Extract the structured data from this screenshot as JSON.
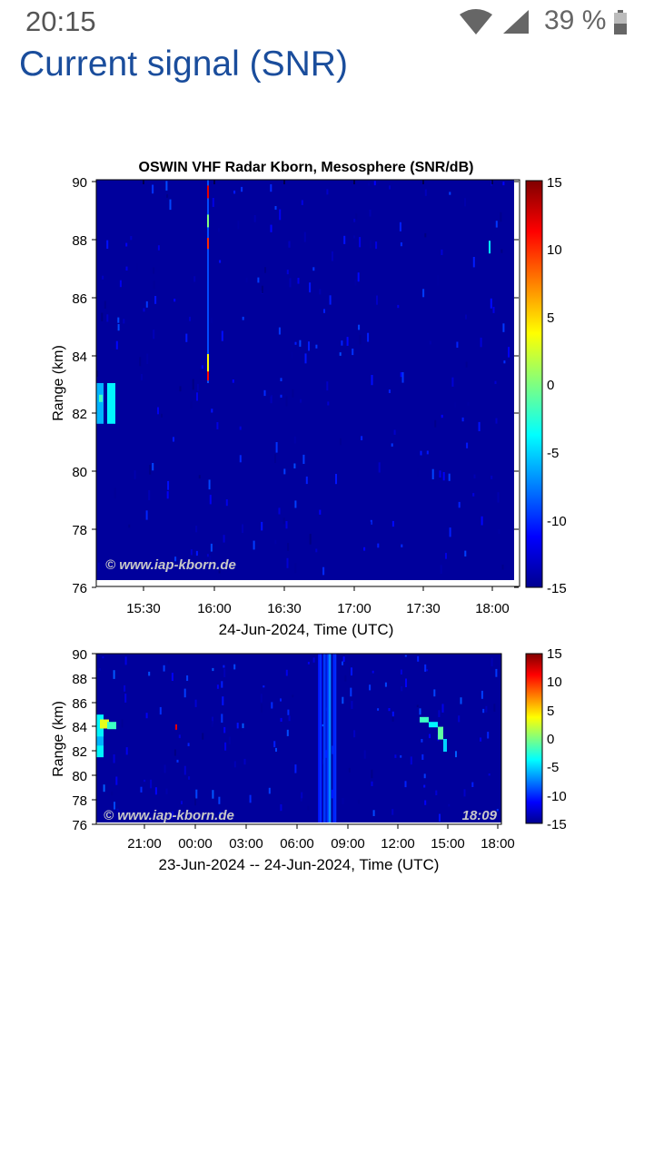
{
  "status_bar": {
    "time": "20:15",
    "battery_percent": "39 %",
    "wifi_icon": "wifi-icon",
    "signal_icon": "cellular-signal-icon",
    "battery_icon": "battery-icon"
  },
  "page": {
    "title": "Current signal (SNR)"
  },
  "colorbar_ticks": [
    "15",
    "10",
    "5",
    "0",
    "-5",
    "-10",
    "-15"
  ],
  "chart_data": [
    {
      "type": "heatmap",
      "title": "OSWIN VHF Radar Kborn, Mesosphere (SNR/dB)",
      "xlabel": "24-Jun-2024, Time (UTC)",
      "ylabel": "Range (km)",
      "x_ticks": [
        "15:30",
        "16:00",
        "16:30",
        "17:00",
        "17:30",
        "18:00"
      ],
      "y_ticks": [
        "90",
        "88",
        "86",
        "84",
        "82",
        "80",
        "78",
        "76"
      ],
      "ylim": [
        76,
        90
      ],
      "color_range": [
        -15,
        15
      ],
      "colorbar_label": "SNR/dB",
      "watermark": "© www.iap-kborn.de",
      "background_level": -15,
      "features": [
        {
          "time": "15:14-15:17",
          "range_km": [
            81.6,
            83.0
          ],
          "snr": -4
        },
        {
          "time": "15:58",
          "range_km": [
            83.0,
            90.0
          ],
          "snr": 10
        }
      ]
    },
    {
      "type": "heatmap",
      "xlabel": "23-Jun-2024 -- 24-Jun-2024, Time (UTC)",
      "ylabel": "Range (km)",
      "x_ticks": [
        "21:00",
        "00:00",
        "03:00",
        "06:00",
        "09:00",
        "12:00",
        "15:00",
        "18:00"
      ],
      "y_ticks": [
        "90",
        "88",
        "86",
        "84",
        "82",
        "80",
        "78",
        "76"
      ],
      "ylim": [
        76,
        90
      ],
      "color_range": [
        -15,
        15
      ],
      "colorbar_label": "SNR/dB",
      "watermark": "© www.iap-kborn.de",
      "timestamp": "18:09",
      "background_level": -15,
      "features": [
        {
          "time": "18:10-19:00",
          "range_km": [
            81.5,
            85.0
          ],
          "snr": 3
        },
        {
          "time": "07:30-08:30",
          "range_km": [
            76.0,
            90.0
          ],
          "snr": -8
        },
        {
          "time": "13:30-15:00",
          "range_km": [
            82.0,
            84.8
          ],
          "snr": -3
        }
      ]
    }
  ]
}
